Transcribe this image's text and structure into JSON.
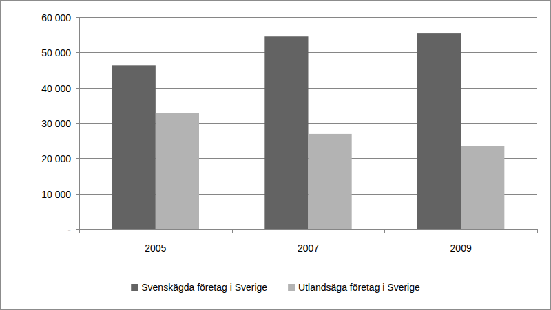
{
  "chart_data": {
    "type": "bar",
    "categories": [
      "2005",
      "2007",
      "2009"
    ],
    "series": [
      {
        "name": "Svenskägda företag i Sverige",
        "color": "#636363",
        "values": [
          46300,
          54500,
          55500
        ]
      },
      {
        "name": "Utlandsäga företag i Sverige",
        "color": "#b3b3b3",
        "values": [
          32900,
          26900,
          23400
        ]
      }
    ],
    "ylim": [
      0,
      60000
    ],
    "yticks": [
      {
        "value": 0,
        "label": "-"
      },
      {
        "value": 10000,
        "label": "10 000"
      },
      {
        "value": 20000,
        "label": "20 000"
      },
      {
        "value": 30000,
        "label": "30 000"
      },
      {
        "value": 40000,
        "label": "40 000"
      },
      {
        "value": 50000,
        "label": "50 000"
      },
      {
        "value": 60000,
        "label": "60 000"
      }
    ],
    "grid": true,
    "legend": "bottom"
  }
}
